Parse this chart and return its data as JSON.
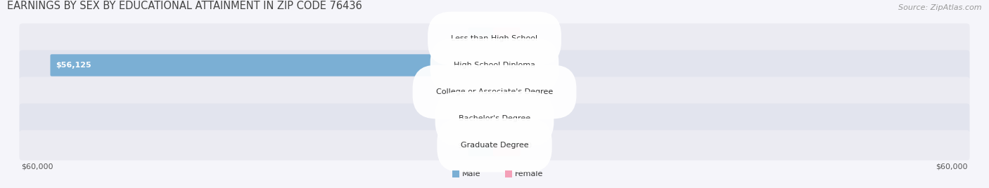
{
  "title": "EARNINGS BY SEX BY EDUCATIONAL ATTAINMENT IN ZIP CODE 76436",
  "source": "Source: ZipAtlas.com",
  "categories": [
    "Less than High School",
    "High School Diploma",
    "College or Associate's Degree",
    "Bachelor's Degree",
    "Graduate Degree"
  ],
  "male_values": [
    0,
    56125,
    0,
    0,
    0
  ],
  "female_values": [
    0,
    0,
    0,
    0,
    0
  ],
  "male_color": "#7bafd4",
  "female_color": "#f4a0b8",
  "male_stub_color": "#a8c8e8",
  "female_stub_color": "#f9c0d0",
  "row_color_odd": "#ebebf2",
  "row_color_even": "#e2e4ee",
  "max_value": 60000,
  "xlabel_left": "$60,000",
  "xlabel_right": "$60,000",
  "background_color": "#f5f5fa",
  "title_fontsize": 10.5,
  "source_fontsize": 8,
  "bar_label_fontsize": 8,
  "cat_label_fontsize": 8,
  "value_label_fontsize": 8
}
